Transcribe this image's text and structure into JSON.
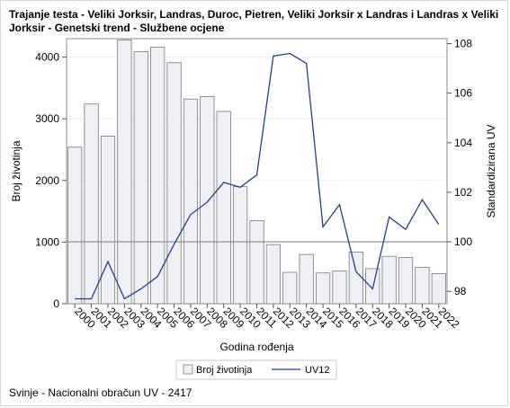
{
  "title": "Trajanje testa - Veliki Jorksir, Landras, Duroc, Pietren, Veliki Jorksir x Landras i Landras x Veliki Jorksir - Genetski trend - Službene ocjene",
  "footnote": "Svinje - Nacionalni obračun UV - 2417",
  "chart_data": {
    "type": "bar",
    "title": "Trajanje testa - Veliki Jorksir, Landras, Duroc, Pietren, Veliki Jorksir x Landras i Landras x Veliki Jorksir - Genetski trend - Službene ocjene",
    "xlabel": "Godina rođenja",
    "ylabel": "Broj životinja",
    "y2label": "Standardizirana UV",
    "categories": [
      "2000",
      "2001",
      "2002",
      "2003",
      "2004",
      "2005",
      "2006",
      "2007",
      "2008",
      "2009",
      "2010",
      "2011",
      "2012",
      "2013",
      "2014",
      "2015",
      "2016",
      "2017",
      "2018",
      "2019",
      "2020",
      "2021",
      "2022"
    ],
    "ylim": [
      0,
      4300
    ],
    "yticks": [
      0,
      1000,
      2000,
      3000,
      4000
    ],
    "y2lim": [
      97.5,
      108.2
    ],
    "y2ticks": [
      98,
      100,
      102,
      104,
      106,
      108
    ],
    "reference_line_y2": 100,
    "legend_position": "bottom",
    "series": [
      {
        "name": "Broj životinja",
        "type": "bar",
        "axis": "left",
        "color": "#eef0f5",
        "values": [
          2540,
          3240,
          2720,
          4280,
          4090,
          4160,
          3910,
          3320,
          3360,
          3120,
          1900,
          1350,
          960,
          510,
          800,
          500,
          530,
          840,
          570,
          770,
          750,
          590,
          490
        ]
      },
      {
        "name": "UV12",
        "type": "line",
        "axis": "right",
        "color": "#1f3f8f",
        "values": [
          97.7,
          97.7,
          99.2,
          97.7,
          98.1,
          98.6,
          99.9,
          101.1,
          101.6,
          102.4,
          102.2,
          102.7,
          107.5,
          107.6,
          107.2,
          100.6,
          101.5,
          98.8,
          98.1,
          101.0,
          100.5,
          101.7,
          100.7
        ]
      }
    ]
  }
}
